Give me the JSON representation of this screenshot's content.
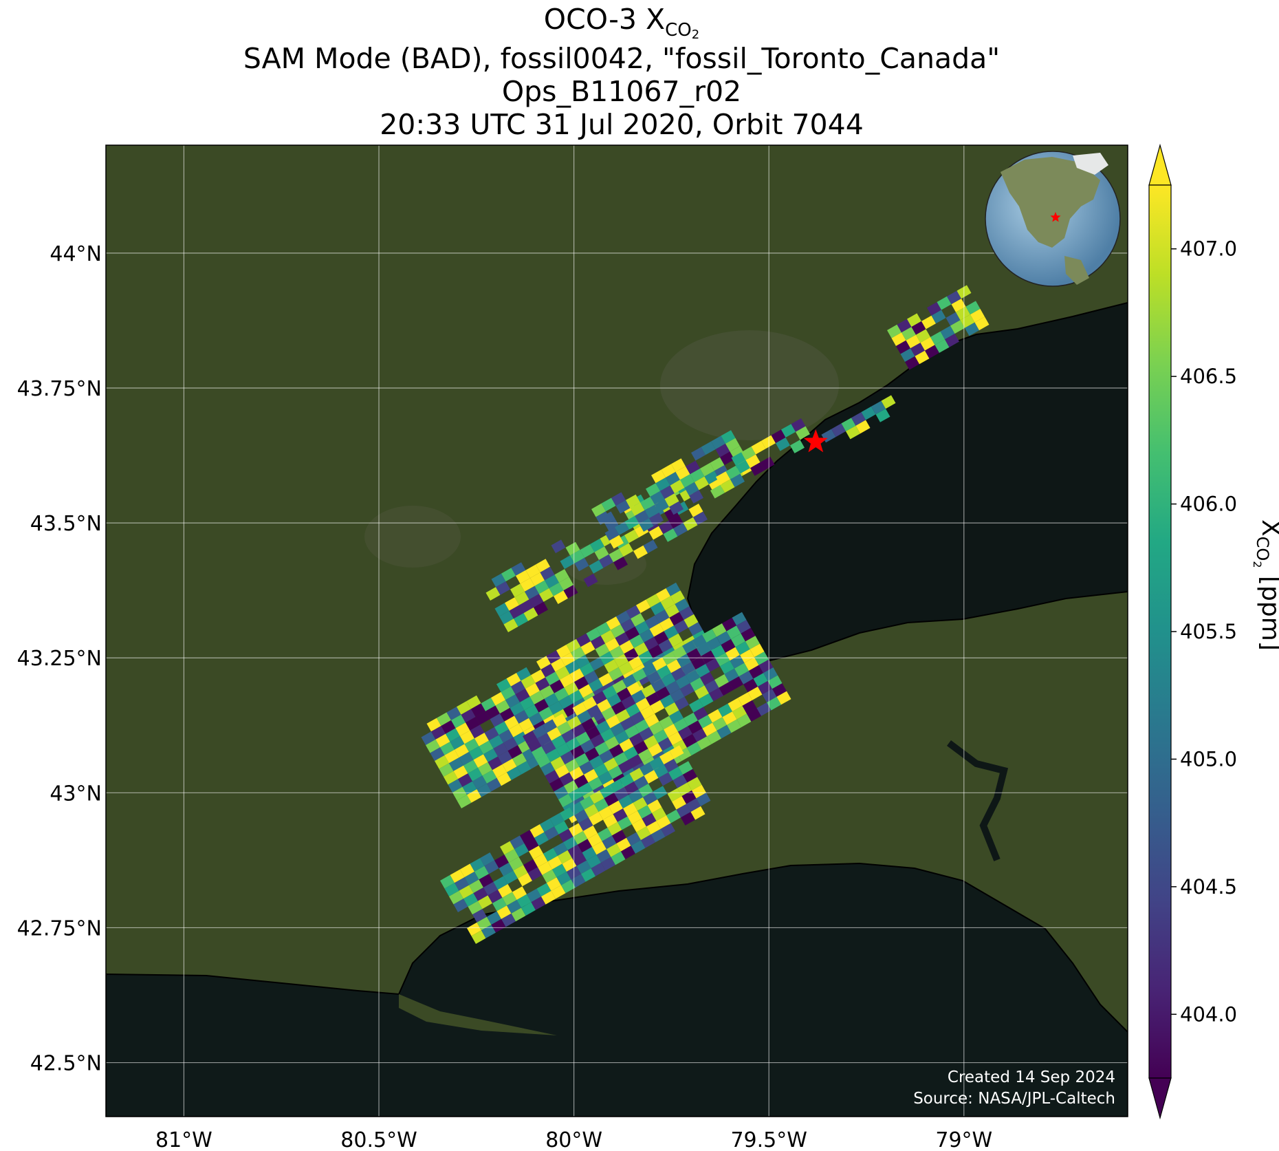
{
  "title": {
    "line1_prefix": "OCO-3 X",
    "line1_sub": "CO",
    "line1_subsub": "2",
    "line2": "SAM Mode (BAD), fossil0042, \"fossil_Toronto_Canada\"",
    "line3": "Ops_B11067_r02",
    "line4": "20:33 UTC 31 Jul 2020, Orbit 7044"
  },
  "axes": {
    "lon_ticks": [
      "81°W",
      "80.5°W",
      "80°W",
      "79.5°W",
      "79°W"
    ],
    "lon_values": [
      -81.0,
      -80.5,
      -80.0,
      -79.5,
      -79.0
    ],
    "lat_ticks": [
      "44°N",
      "43.75°N",
      "43.5°N",
      "43.25°N",
      "43°N",
      "42.75°N",
      "42.5°N"
    ],
    "lat_values": [
      44.0,
      43.75,
      43.5,
      43.25,
      43.0,
      42.75,
      42.5
    ],
    "lon_range": [
      -81.2,
      -78.58
    ],
    "lat_range": [
      42.4,
      44.2
    ],
    "grid": true
  },
  "colorbar": {
    "label_prefix": "X",
    "label_sub": "CO",
    "label_subsub": "2",
    "label_suffix": " [ppm]",
    "ticks": [
      "407.0",
      "406.5",
      "406.0",
      "405.5",
      "405.0",
      "404.5",
      "404.0"
    ],
    "tick_values": [
      407.0,
      406.5,
      406.0,
      405.5,
      405.0,
      404.5,
      404.0
    ],
    "range": [
      403.75,
      407.25
    ],
    "colormap": "viridis",
    "extend": "both"
  },
  "target": {
    "lon": -79.38,
    "lat": 43.65,
    "marker": "red-star"
  },
  "credit": {
    "line1": "Created 14 Sep 2024",
    "line2": "Source: NASA/JPL-Caltech"
  },
  "colors": {
    "land": "#3c4a26",
    "water": "#0e1716",
    "coast": "#000000",
    "target": "#ff0000"
  }
}
